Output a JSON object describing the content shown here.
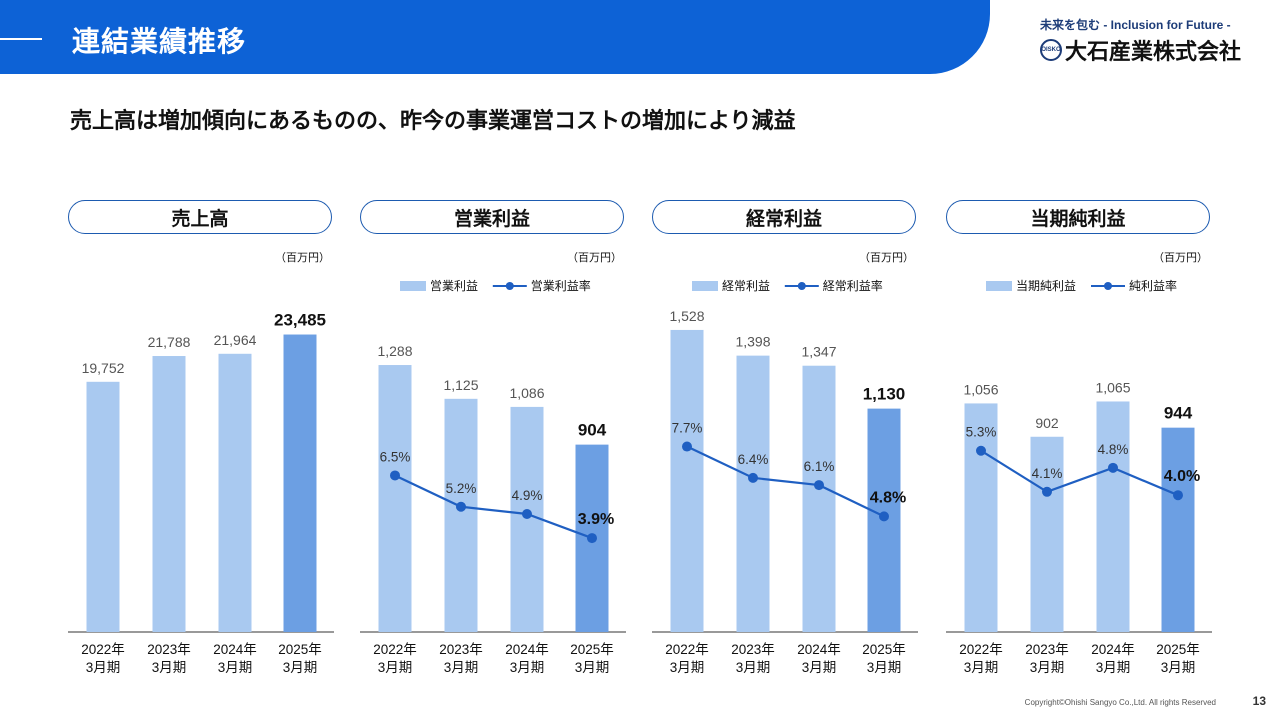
{
  "header": {
    "title": "連結業績推移"
  },
  "brand": {
    "tagline": "未来を包む - Inclusion for Future -",
    "name": "大石産業株式会社",
    "logo_text": "OISKO"
  },
  "subtitle": "売上高は増加傾向にあるものの、昨今の事業運営コストの増加により減益",
  "footer": {
    "copyright": "Copyright©Ohishi Sangyo Co.,Ltd. All rights Reserved",
    "page": "13"
  },
  "colors": {
    "header": "#0d62d6",
    "bar_light": "#a9c9f0",
    "bar_highlight": "#6c9fe3",
    "line": "#1f5fc2"
  },
  "chart_data": [
    {
      "type": "bar",
      "title": "売上高",
      "unit": "（百万円）",
      "categories": [
        "2022年\n3月期",
        "2023年\n3月期",
        "2024年\n3月期",
        "2025年\n3月期"
      ],
      "values": [
        19752,
        21788,
        21964,
        23485
      ],
      "labels": [
        "19,752",
        "21,788",
        "21,964",
        "23,485"
      ],
      "highlight_index": 3,
      "ylim": [
        0,
        27000
      ]
    },
    {
      "type": "bar",
      "title": "営業利益",
      "unit": "（百万円）",
      "legend": [
        "営業利益",
        "営業利益率"
      ],
      "categories": [
        "2022年\n3月期",
        "2023年\n3月期",
        "2024年\n3月期",
        "2025年\n3月期"
      ],
      "values": [
        1288,
        1125,
        1086,
        904
      ],
      "labels": [
        "1,288",
        "1,125",
        "1,086",
        "904"
      ],
      "line_values": [
        6.5,
        5.2,
        4.9,
        3.9
      ],
      "line_labels": [
        "6.5%",
        "5.2%",
        "4.9%",
        "3.9%"
      ],
      "highlight_index": 3,
      "ylim": [
        0,
        1650
      ],
      "line_ylim": [
        0,
        14.2
      ]
    },
    {
      "type": "bar",
      "title": "経常利益",
      "unit": "（百万円）",
      "legend": [
        "経常利益",
        "経常利益率"
      ],
      "categories": [
        "2022年\n3月期",
        "2023年\n3月期",
        "2024年\n3月期",
        "2025年\n3月期"
      ],
      "values": [
        1528,
        1398,
        1347,
        1130
      ],
      "labels": [
        "1,528",
        "1,398",
        "1,347",
        "1,130"
      ],
      "line_values": [
        7.7,
        6.4,
        6.1,
        4.8
      ],
      "line_labels": [
        "7.7%",
        "6.4%",
        "6.1%",
        "4.8%"
      ],
      "highlight_index": 3,
      "ylim": [
        0,
        1730
      ],
      "line_ylim": [
        0,
        14.2
      ]
    },
    {
      "type": "bar",
      "title": "当期純利益",
      "unit": "（百万円）",
      "legend": [
        "当期純利益",
        "純利益率"
      ],
      "categories": [
        "2022年\n3月期",
        "2023年\n3月期",
        "2024年\n3月期",
        "2025年\n3月期"
      ],
      "values": [
        1056,
        902,
        1065,
        944
      ],
      "labels": [
        "1,056",
        "902",
        "1,065",
        "944"
      ],
      "line_values": [
        5.3,
        4.1,
        4.8,
        4.0
      ],
      "line_labels": [
        "5.3%",
        "4.1%",
        "4.8%",
        "4.0%"
      ],
      "highlight_index": 3,
      "ylim": [
        0,
        1580
      ],
      "line_ylim": [
        0,
        10
      ]
    }
  ]
}
